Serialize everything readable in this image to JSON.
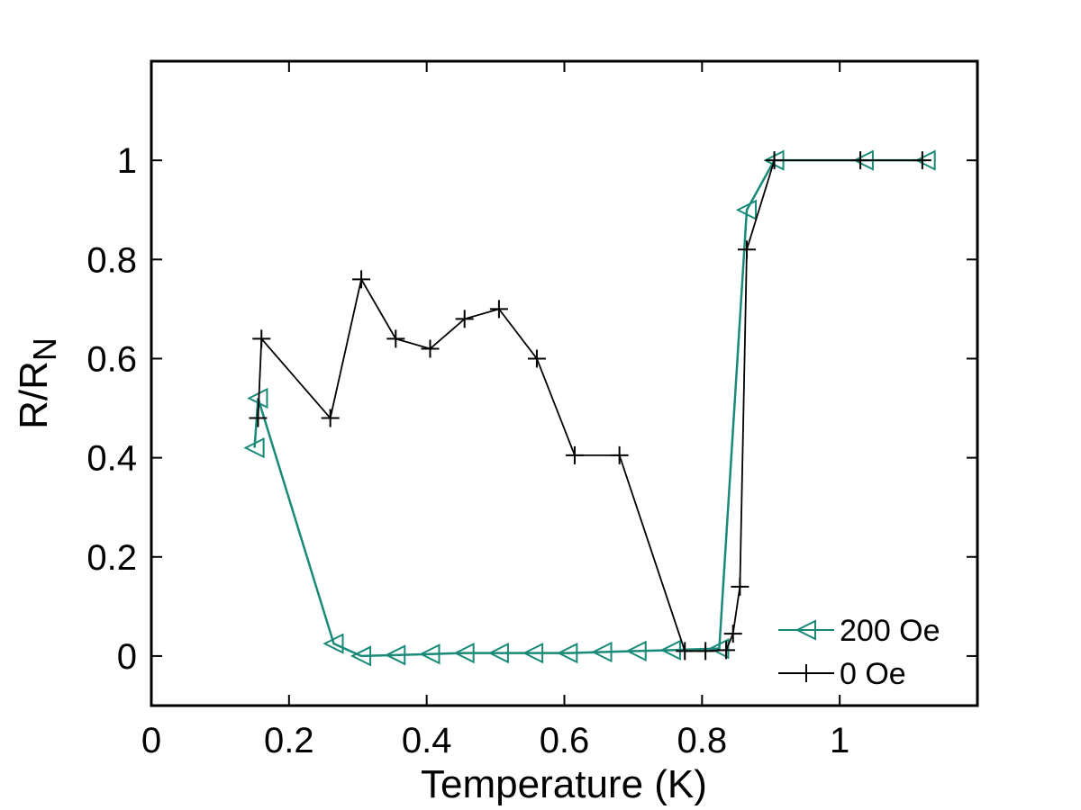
{
  "chart_data": {
    "type": "line",
    "title": "",
    "xlabel": "Temperature (K)",
    "ylabel": {
      "main": "R/R",
      "subscript": "N"
    },
    "xlim": [
      0,
      1.2
    ],
    "ylim": [
      -0.1,
      1.2
    ],
    "x_ticks": [
      0,
      0.2,
      0.4,
      0.6,
      0.8,
      1
    ],
    "x_tick_labels": [
      "0",
      "0.2",
      "0.4",
      "0.6",
      "0.8",
      "1"
    ],
    "y_ticks": [
      0,
      0.2,
      0.4,
      0.6,
      0.8,
      1
    ],
    "y_tick_labels": [
      "0",
      "0.2",
      "0.4",
      "0.6",
      "0.8",
      "1"
    ],
    "grid": false,
    "legend_position": "bottom-right",
    "series": [
      {
        "name": "200 Oe",
        "color": "#1a8a78",
        "marker": "triangle-left",
        "x": [
          0.15,
          0.155,
          0.265,
          0.305,
          0.355,
          0.405,
          0.455,
          0.505,
          0.555,
          0.605,
          0.655,
          0.705,
          0.755,
          0.825,
          0.865,
          0.905,
          1.035,
          1.125
        ],
        "y": [
          0.42,
          0.52,
          0.025,
          0.0,
          0.002,
          0.004,
          0.006,
          0.006,
          0.006,
          0.006,
          0.008,
          0.01,
          0.012,
          0.015,
          0.9,
          1.0,
          1.0,
          1.0
        ]
      },
      {
        "name": "0 Oe",
        "color": "#000000",
        "marker": "plus",
        "x": [
          0.155,
          0.16,
          0.26,
          0.305,
          0.355,
          0.405,
          0.455,
          0.505,
          0.56,
          0.615,
          0.68,
          0.775,
          0.805,
          0.835,
          0.845,
          0.855,
          0.865,
          0.905,
          1.03,
          1.12
        ],
        "y": [
          0.48,
          0.64,
          0.48,
          0.76,
          0.64,
          0.62,
          0.68,
          0.7,
          0.6,
          0.405,
          0.405,
          0.01,
          0.01,
          0.012,
          0.045,
          0.14,
          0.82,
          1.0,
          1.0,
          1.0
        ]
      }
    ]
  }
}
